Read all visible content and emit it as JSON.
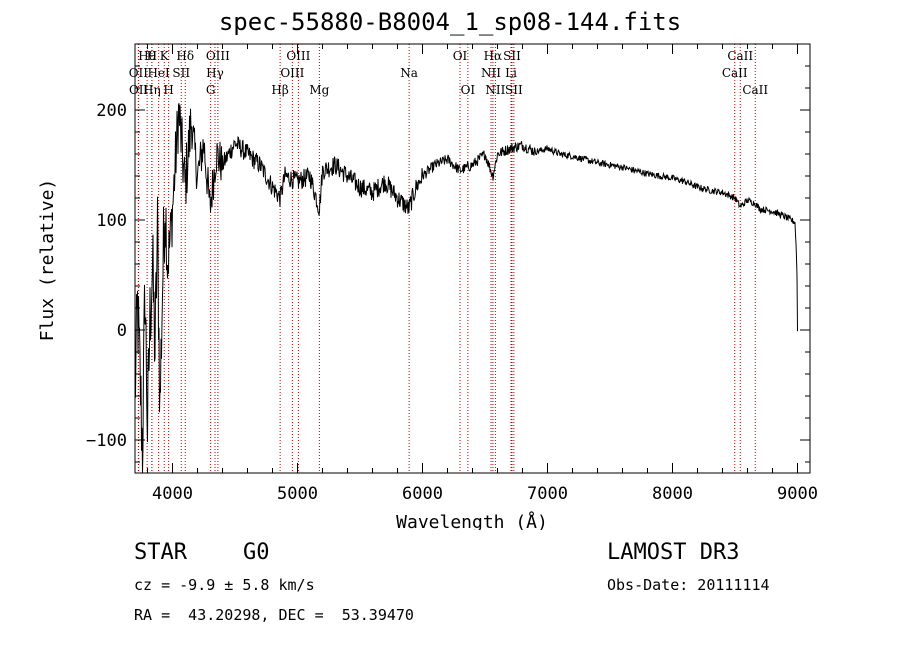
{
  "chart_data": {
    "type": "line",
    "title": "spec-55880-B8004_1_sp08-144.fits",
    "xlabel": "Wavelength (Å)",
    "ylabel": "Flux (relative)",
    "xlim": [
      3700,
      9100
    ],
    "ylim": [
      -130,
      260
    ],
    "x_ticks": [
      4000,
      5000,
      6000,
      7000,
      8000,
      9000
    ],
    "y_ticks": [
      -100,
      0,
      100,
      200
    ],
    "series": [
      {
        "name": "spectrum",
        "x": [
          3700,
          3720,
          3740,
          3760,
          3780,
          3800,
          3820,
          3840,
          3860,
          3880,
          3900,
          3920,
          3940,
          3960,
          3980,
          4000,
          4050,
          4100,
          4150,
          4200,
          4250,
          4300,
          4350,
          4400,
          4500,
          4600,
          4700,
          4800,
          4861,
          4900,
          5000,
          5100,
          5175,
          5200,
          5300,
          5400,
          5500,
          5600,
          5700,
          5800,
          5890,
          5950,
          6000,
          6100,
          6200,
          6300,
          6400,
          6500,
          6563,
          6600,
          6700,
          6800,
          6900,
          7000,
          7100,
          7200,
          7300,
          7400,
          7500,
          7600,
          7700,
          7800,
          7900,
          8000,
          8100,
          8200,
          8300,
          8400,
          8500,
          8542,
          8600,
          8662,
          8700,
          8800,
          8900,
          8980,
          8995,
          9000
        ],
        "y": [
          -60,
          20,
          -40,
          -110,
          40,
          -90,
          10,
          60,
          -20,
          90,
          -70,
          40,
          120,
          60,
          80,
          110,
          200,
          130,
          190,
          140,
          170,
          110,
          160,
          150,
          170,
          160,
          150,
          130,
          120,
          140,
          135,
          140,
          110,
          145,
          150,
          140,
          130,
          125,
          135,
          120,
          110,
          130,
          140,
          150,
          155,
          145,
          150,
          160,
          140,
          160,
          165,
          168,
          162,
          165,
          160,
          158,
          155,
          152,
          150,
          148,
          145,
          142,
          140,
          138,
          135,
          130,
          127,
          125,
          120,
          112,
          118,
          115,
          110,
          108,
          103,
          98,
          60,
          0
        ]
      }
    ],
    "line_markers": [
      {
        "name": "Hθ",
        "x": 3797,
        "row": 0
      },
      {
        "name": "H",
        "x": 3835,
        "row": 0
      },
      {
        "name": "K",
        "x": 3934,
        "row": 0
      },
      {
        "name": "Hδ",
        "x": 4102,
        "row": 0
      },
      {
        "name": "OII",
        "x": 3727,
        "row": 1
      },
      {
        "name": "HeI",
        "x": 3889,
        "row": 1
      },
      {
        "name": "SII",
        "x": 4070,
        "row": 1
      },
      {
        "name": "OII",
        "x": 3729,
        "row": 2
      },
      {
        "name": "Hη",
        "x": 3835,
        "row": 2
      },
      {
        "name": "H",
        "x": 3969,
        "row": 2
      },
      {
        "name": "OIII",
        "x": 4363,
        "row": 0
      },
      {
        "name": "Hγ",
        "x": 4340,
        "row": 1
      },
      {
        "name": "G",
        "x": 4305,
        "row": 2
      },
      {
        "name": "OIII",
        "x": 5007,
        "row": 0
      },
      {
        "name": "OIII",
        "x": 4959,
        "row": 1
      },
      {
        "name": "Hβ",
        "x": 4861,
        "row": 2
      },
      {
        "name": "Mg",
        "x": 5175,
        "row": 2
      },
      {
        "name": "Na",
        "x": 5893,
        "row": 1
      },
      {
        "name": "OI",
        "x": 6300,
        "row": 0
      },
      {
        "name": "OI",
        "x": 6363,
        "row": 2
      },
      {
        "name": "Hα",
        "x": 6563,
        "row": 0
      },
      {
        "name": "SII",
        "x": 6716,
        "row": 0
      },
      {
        "name": "NII",
        "x": 6548,
        "row": 1
      },
      {
        "name": "Li",
        "x": 6708,
        "row": 1
      },
      {
        "name": "NII",
        "x": 6583,
        "row": 2
      },
      {
        "name": "SII",
        "x": 6731,
        "row": 2
      },
      {
        "name": "CaII",
        "x": 8542,
        "row": 0
      },
      {
        "name": "CaII",
        "x": 8498,
        "row": 1
      },
      {
        "name": "CaII",
        "x": 8662,
        "row": 2
      }
    ],
    "marker_color": "#c00000"
  },
  "info": {
    "class": "STAR",
    "subclass": "G0",
    "survey": "LAMOST DR3",
    "cz": "cz = -9.9 ± 5.8 km/s",
    "obs_date": "Obs-Date: 20111114",
    "radec": "RA =  43.20298, DEC =  53.39470"
  }
}
